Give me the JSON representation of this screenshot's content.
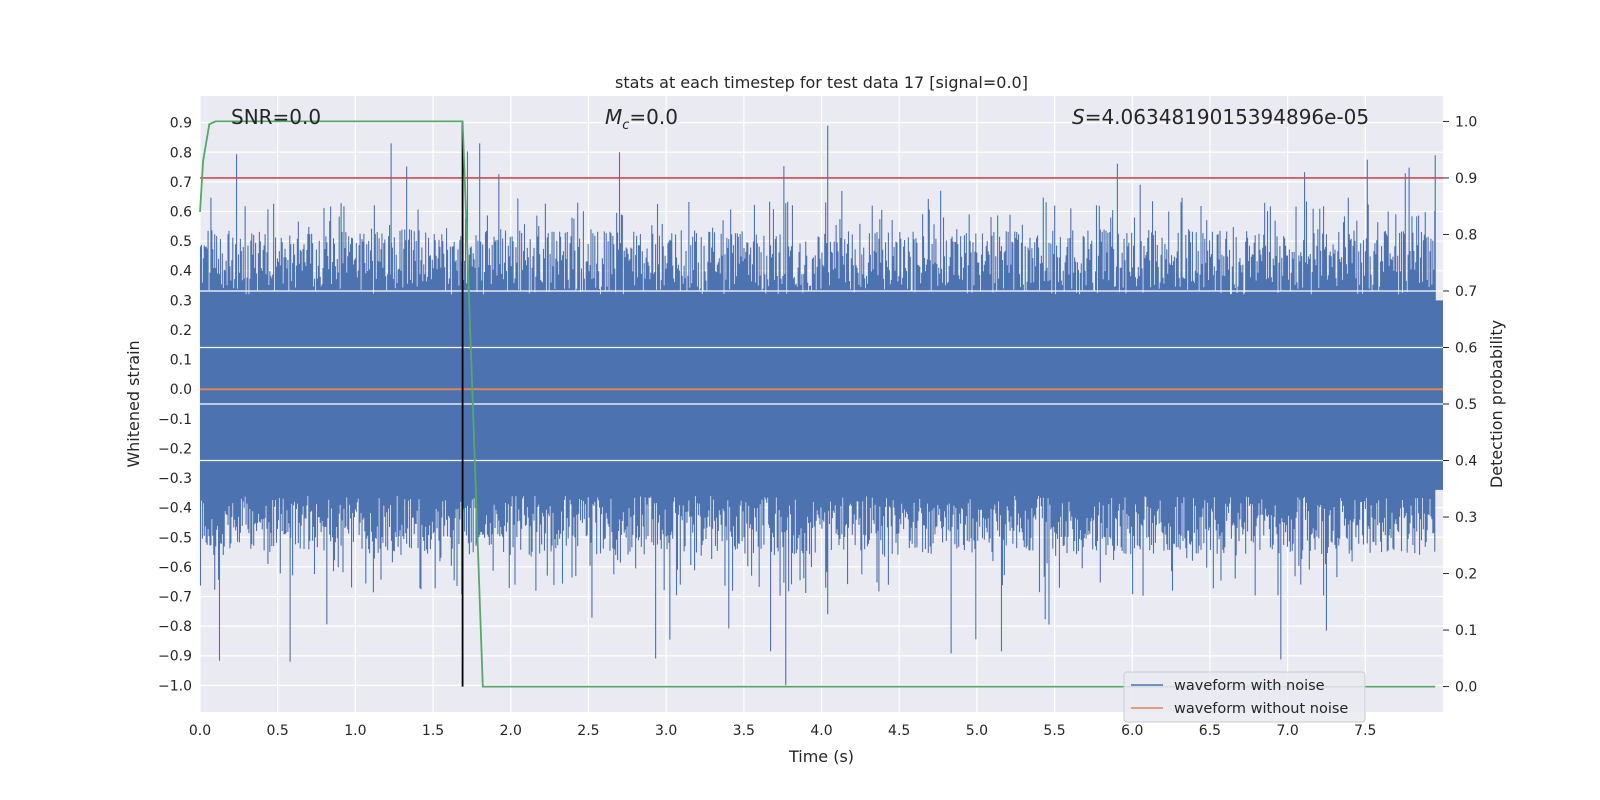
{
  "chart_data": {
    "type": "line",
    "title": "stats at each timestep for test data 17 [signal=0.0]",
    "xlabel": "Time (s)",
    "ylabel": "Whitened strain",
    "y2label": "Detection probability",
    "xlim": [
      0.0,
      8.0
    ],
    "ylim": [
      -1.09,
      0.99
    ],
    "y2lim": [
      -0.045,
      1.045
    ],
    "xticks": [
      "0.0",
      "0.5",
      "1.0",
      "1.5",
      "2.0",
      "2.5",
      "3.0",
      "3.5",
      "4.0",
      "4.5",
      "5.0",
      "5.5",
      "6.0",
      "6.5",
      "7.0",
      "7.5"
    ],
    "yticks": [
      "0.9",
      "0.8",
      "0.7",
      "0.6",
      "0.5",
      "0.4",
      "0.3",
      "0.2",
      "0.1",
      "0.0",
      "−0.1",
      "−0.2",
      "−0.3",
      "−0.4",
      "−0.5",
      "−0.6",
      "−0.7",
      "−0.8",
      "−0.9",
      "−1.0"
    ],
    "y2ticks": [
      "1.0",
      "0.9",
      "0.8",
      "0.7",
      "0.6",
      "0.5",
      "0.4",
      "0.3",
      "0.2",
      "0.1",
      "0.0"
    ],
    "grid": true,
    "legend_position": "lower-right",
    "series": [
      {
        "name": "waveform with noise",
        "color": "#4c72b0",
        "kind": "noise",
        "envelope": {
          "core_range": [
            -0.36,
            0.32
          ],
          "typical_peak": 0.65,
          "max": 0.89,
          "min": -1.0
        }
      },
      {
        "name": "waveform without noise",
        "color": "#dd8452",
        "kind": "constant",
        "value": 0.0
      },
      {
        "axis": "right",
        "color": "#55a868",
        "kind": "detection",
        "x": [
          0.0,
          0.02,
          0.06,
          0.1,
          1.69,
          1.72,
          1.82,
          7.95
        ],
        "y": [
          0.84,
          0.93,
          0.995,
          1.0,
          1.0,
          0.78,
          0.0,
          0.0
        ]
      }
    ],
    "threshold": {
      "color": "#c44e52",
      "y2": 0.9
    },
    "marker_time": {
      "color": "#000000",
      "x": 1.69
    },
    "annotations": [
      {
        "text": "SNR=0.0"
      },
      {
        "text_symbol": "M",
        "text_sub": "c",
        "text_rest": "=0.0"
      },
      {
        "text_symbol": "S",
        "text_rest": "=4.0634819015394896e-05"
      }
    ]
  }
}
